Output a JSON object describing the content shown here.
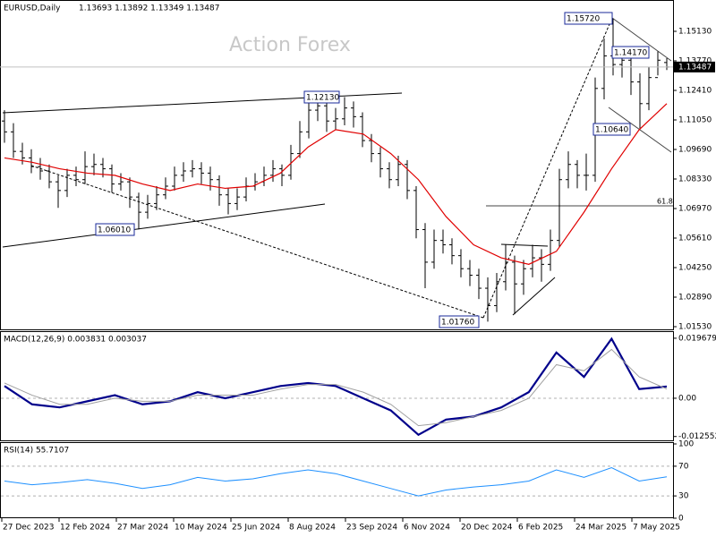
{
  "chart_data": [
    {
      "type": "ohlc",
      "title": "EURUSD,Daily",
      "quote": "1.13693 1.13892 1.13349 1.13487",
      "price_label": "1.13487",
      "watermark": "Action Forex",
      "annotations": [
        "1.15720",
        "1.14170",
        "1.12130",
        "1.06010",
        "1.10640",
        "1.01760",
        "61.8"
      ],
      "xtick_labels": [
        "27 Dec 2023",
        "12 Feb 2024",
        "27 Mar 2024",
        "10 May 2024",
        "25 Jun 2024",
        "8 Aug 2024",
        "23 Sep 2024",
        "6 Nov 2024",
        "20 Dec 2024",
        "6 Feb 2025",
        "24 Mar 2025",
        "7 May 2025"
      ],
      "ylim": [
        1.01406,
        1.16572
      ],
      "yticks": [
        {
          "value": 1.1513,
          "label": "1.15130"
        },
        {
          "value": 1.1377,
          "label": "1.13770"
        },
        {
          "value": 1.1241,
          "label": "1.12410"
        },
        {
          "value": 1.1105,
          "label": "1.11050"
        },
        {
          "value": 1.0969,
          "label": "1.09690"
        },
        {
          "value": 1.0833,
          "label": "1.08330"
        },
        {
          "value": 1.0697,
          "label": "1.06970"
        },
        {
          "value": 1.0561,
          "label": "1.05610"
        },
        {
          "value": 1.0425,
          "label": "1.04250"
        },
        {
          "value": 1.0289,
          "label": "1.02890"
        },
        {
          "value": 1.0153,
          "label": "1.01530"
        }
      ],
      "bar_color": "#000000",
      "bars": [
        [
          1.11,
          1.115,
          1.1,
          1.105
        ],
        [
          1.105,
          1.109,
          1.093,
          1.096
        ],
        [
          1.096,
          1.1,
          1.09,
          1.093
        ],
        [
          1.093,
          1.097,
          1.086,
          1.089
        ],
        [
          1.089,
          1.093,
          1.083,
          1.087
        ],
        [
          1.087,
          1.09,
          1.079,
          1.082
        ],
        [
          1.082,
          1.085,
          1.07,
          1.078
        ],
        [
          1.078,
          1.088,
          1.075,
          1.085
        ],
        [
          1.085,
          1.089,
          1.08,
          1.083
        ],
        [
          1.083,
          1.096,
          1.081,
          1.089
        ],
        [
          1.089,
          1.095,
          1.085,
          1.09
        ],
        [
          1.09,
          1.093,
          1.084,
          1.088
        ],
        [
          1.088,
          1.09,
          1.077,
          1.081
        ],
        [
          1.081,
          1.086,
          1.078,
          1.082
        ],
        [
          1.082,
          1.084,
          1.07,
          1.075
        ],
        [
          1.075,
          1.077,
          1.0601,
          1.068
        ],
        [
          1.068,
          1.076,
          1.065,
          1.072
        ],
        [
          1.072,
          1.08,
          1.069,
          1.076
        ],
        [
          1.076,
          1.084,
          1.074,
          1.08
        ],
        [
          1.08,
          1.089,
          1.078,
          1.085
        ],
        [
          1.085,
          1.091,
          1.082,
          1.087
        ],
        [
          1.087,
          1.092,
          1.084,
          1.088
        ],
        [
          1.088,
          1.091,
          1.081,
          1.086
        ],
        [
          1.086,
          1.089,
          1.078,
          1.083
        ],
        [
          1.083,
          1.085,
          1.071,
          1.076
        ],
        [
          1.076,
          1.079,
          1.067,
          1.072
        ],
        [
          1.072,
          1.079,
          1.069,
          1.075
        ],
        [
          1.075,
          1.084,
          1.073,
          1.08
        ],
        [
          1.08,
          1.086,
          1.078,
          1.082
        ],
        [
          1.082,
          1.089,
          1.08,
          1.085
        ],
        [
          1.085,
          1.092,
          1.082,
          1.088
        ],
        [
          1.088,
          1.09,
          1.08,
          1.085
        ],
        [
          1.085,
          1.099,
          1.083,
          1.095
        ],
        [
          1.095,
          1.11,
          1.093,
          1.105
        ],
        [
          1.105,
          1.12,
          1.102,
          1.115
        ],
        [
          1.115,
          1.1214,
          1.11,
          1.117
        ],
        [
          1.117,
          1.119,
          1.105,
          1.11
        ],
        [
          1.11,
          1.116,
          1.106,
          1.111
        ],
        [
          1.111,
          1.121,
          1.108,
          1.116
        ],
        [
          1.116,
          1.119,
          1.107,
          1.112
        ],
        [
          1.112,
          1.114,
          1.098,
          1.101
        ],
        [
          1.101,
          1.104,
          1.091,
          1.095
        ],
        [
          1.095,
          1.098,
          1.084,
          1.088
        ],
        [
          1.088,
          1.091,
          1.079,
          1.083
        ],
        [
          1.083,
          1.094,
          1.08,
          1.09
        ],
        [
          1.09,
          1.092,
          1.074,
          1.078
        ],
        [
          1.078,
          1.08,
          1.056,
          1.06
        ],
        [
          1.06,
          1.063,
          1.033,
          1.045
        ],
        [
          1.045,
          1.06,
          1.042,
          1.055
        ],
        [
          1.055,
          1.06,
          1.049,
          1.053
        ],
        [
          1.053,
          1.056,
          1.044,
          1.048
        ],
        [
          1.048,
          1.051,
          1.038,
          1.042
        ],
        [
          1.042,
          1.046,
          1.034,
          1.039
        ],
        [
          1.039,
          1.042,
          1.028,
          1.033
        ],
        [
          1.033,
          1.038,
          1.0176,
          1.025
        ],
        [
          1.025,
          1.04,
          1.022,
          1.036
        ],
        [
          1.036,
          1.053,
          1.032,
          1.045
        ],
        [
          1.045,
          1.048,
          1.021,
          1.035
        ],
        [
          1.035,
          1.046,
          1.03,
          1.042
        ],
        [
          1.042,
          1.053,
          1.038,
          1.047
        ],
        [
          1.047,
          1.051,
          1.036,
          1.044
        ],
        [
          1.044,
          1.06,
          1.041,
          1.055
        ],
        [
          1.055,
          1.088,
          1.052,
          1.083
        ],
        [
          1.083,
          1.096,
          1.079,
          1.09
        ],
        [
          1.09,
          1.092,
          1.079,
          1.085
        ],
        [
          1.085,
          1.095,
          1.078,
          1.085
        ],
        [
          1.085,
          1.13,
          1.082,
          1.125
        ],
        [
          1.125,
          1.148,
          1.12,
          1.14
        ],
        [
          1.14,
          1.1572,
          1.131,
          1.136
        ],
        [
          1.136,
          1.142,
          1.13,
          1.138
        ],
        [
          1.138,
          1.14,
          1.122,
          1.128
        ],
        [
          1.128,
          1.132,
          1.1064,
          1.118
        ],
        [
          1.118,
          1.135,
          1.115,
          1.13
        ],
        [
          1.13,
          1.142,
          1.131,
          1.138
        ],
        [
          1.13693,
          1.13892,
          1.13349,
          1.13487
        ]
      ],
      "ma_color": "#e00000",
      "ma": [
        1.093,
        1.091,
        1.088,
        1.086,
        1.085,
        1.081,
        1.078,
        1.081,
        1.079,
        1.08,
        1.086,
        1.098,
        1.106,
        1.104,
        1.095,
        1.083,
        1.066,
        1.053,
        1.047,
        1.044,
        1.05,
        1.068,
        1.088,
        1.106,
        1.118
      ]
    },
    {
      "type": "line",
      "title": "MACD(12,26,9) 0.003831 0.003037",
      "ylim": [
        -0.0141,
        0.022
      ],
      "yticks": [
        0.019679,
        {
          "value": 0,
          "label": "0.00"
        },
        -0.012552
      ],
      "series": [
        {
          "color": "#00008b",
          "values": [
            0.004,
            -0.002,
            -0.003,
            -0.001,
            0.001,
            -0.002,
            -0.001,
            0.002,
            0.0,
            0.002,
            0.004,
            0.005,
            0.004,
            0.0,
            -0.004,
            -0.012,
            -0.007,
            -0.006,
            -0.003,
            0.002,
            0.015,
            0.007,
            0.0195,
            0.003,
            0.003831
          ]
        },
        {
          "color": "#a0a0a0",
          "values": [
            0.005,
            0.001,
            -0.002,
            -0.002,
            0.0,
            -0.001,
            -0.001,
            0.001,
            0.001,
            0.001,
            0.003,
            0.0045,
            0.0045,
            0.002,
            -0.002,
            -0.009,
            -0.008,
            -0.006,
            -0.004,
            0.0,
            0.011,
            0.009,
            0.016,
            0.007,
            0.003037
          ]
        }
      ]
    },
    {
      "type": "line",
      "title": "RSI(14) 55.7107",
      "ylim": [
        0,
        100
      ],
      "yticks": [
        100,
        70,
        30,
        0
      ],
      "levels": [
        70,
        30
      ],
      "series": [
        {
          "color": "#1e90ff",
          "values": [
            50,
            45,
            48,
            52,
            47,
            40,
            45,
            55,
            50,
            53,
            60,
            65,
            60,
            50,
            40,
            30,
            38,
            42,
            45,
            50,
            65,
            55,
            68,
            50,
            55.7107
          ]
        }
      ]
    }
  ]
}
